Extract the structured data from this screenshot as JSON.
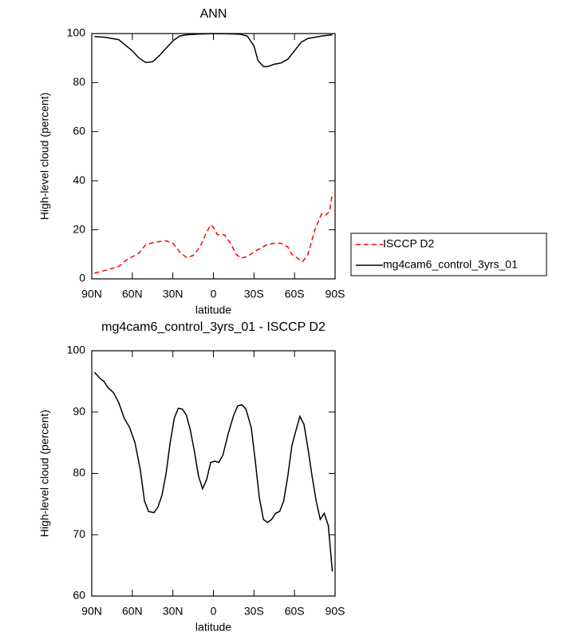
{
  "chart_data": [
    {
      "type": "line",
      "title": "ANN",
      "xlabel": "latitude",
      "ylabel": "High-level cloud (percent)",
      "xlim": [
        90,
        -90
      ],
      "ylim": [
        0,
        100
      ],
      "xticks": [
        {
          "value": 90,
          "label": "90N"
        },
        {
          "value": 60,
          "label": "60N"
        },
        {
          "value": 30,
          "label": "30N"
        },
        0,
        {
          "value": -30,
          "label": "30S"
        },
        {
          "value": -60,
          "label": "60S"
        },
        {
          "value": -90,
          "label": "90S"
        }
      ],
      "yticks": [
        0,
        20,
        40,
        60,
        80,
        100
      ],
      "legend": "right",
      "series": [
        {
          "name": "ISCCP D2",
          "color": "#ff0000",
          "line_style": "dashed",
          "x": [
            88,
            80,
            70,
            65,
            60,
            55,
            50,
            45,
            40,
            35,
            30,
            25,
            20,
            15,
            10,
            5,
            2,
            0,
            -3,
            -8,
            -12,
            -17,
            -20,
            -25,
            -30,
            -35,
            -40,
            -45,
            -50,
            -55,
            -58,
            -62,
            -66,
            -70,
            -75,
            -80,
            -83,
            -86,
            -88
          ],
          "values": [
            2.3,
            3.5,
            5,
            7.5,
            9,
            10.5,
            14,
            14.7,
            15.2,
            15.5,
            14.5,
            11,
            8.7,
            9.5,
            13,
            19,
            22,
            21,
            18,
            18,
            15,
            10,
            8.5,
            9,
            11,
            12.5,
            14,
            14.5,
            14.5,
            13,
            10,
            8.5,
            7,
            10,
            20,
            26.5,
            26,
            27.5,
            35
          ]
        },
        {
          "name": "mg4cam6_control_3yrs_01",
          "color": "#000000",
          "line_style": "solid",
          "x": [
            88,
            80,
            70,
            60,
            55,
            50,
            45,
            40,
            35,
            30,
            25,
            20,
            10,
            0,
            -10,
            -20,
            -25,
            -30,
            -33,
            -37,
            -40,
            -45,
            -50,
            -55,
            -60,
            -65,
            -70,
            -75,
            -80,
            -88
          ],
          "values": [
            98.8,
            98.5,
            97.5,
            93,
            90,
            88.2,
            88.5,
            91,
            94,
            97,
            99,
            99.5,
            99.8,
            100,
            99.9,
            99.7,
            99,
            95,
            89,
            86.5,
            86.5,
            87.5,
            88,
            89.5,
            93,
            96.5,
            98,
            98.5,
            99,
            99.5
          ]
        }
      ]
    },
    {
      "type": "line",
      "title": "mg4cam6_control_3yrs_01 - ISCCP D2",
      "xlabel": "latitude",
      "ylabel": "High-level cloud (percent)",
      "xlim": [
        90,
        -90
      ],
      "ylim": [
        60,
        100
      ],
      "xticks": [
        {
          "value": 90,
          "label": "90N"
        },
        {
          "value": 60,
          "label": "60N"
        },
        {
          "value": 30,
          "label": "30N"
        },
        0,
        {
          "value": -30,
          "label": "30S"
        },
        {
          "value": -60,
          "label": "60S"
        },
        {
          "value": -90,
          "label": "90S"
        }
      ],
      "yticks": [
        60,
        70,
        80,
        90,
        100
      ],
      "series": [
        {
          "color": "#000000",
          "line_style": "solid",
          "x": [
            88,
            84,
            81,
            78,
            74,
            70,
            66,
            62,
            58,
            54,
            51,
            48,
            44,
            41,
            38,
            35,
            32,
            29,
            26,
            23,
            20,
            17,
            14,
            11,
            8,
            5,
            2,
            -1,
            -4,
            -7,
            -11,
            -15,
            -18,
            -21,
            -24,
            -28,
            -31,
            -34,
            -37,
            -40,
            -43,
            -46,
            -49,
            -52,
            -55,
            -58,
            -61,
            -64,
            -67,
            -70,
            -73,
            -76,
            -79,
            -82,
            -85,
            -88
          ],
          "values": [
            96.5,
            95.5,
            95,
            94,
            93.2,
            91.5,
            89,
            87.5,
            85,
            80.5,
            75.5,
            73.8,
            73.6,
            74.5,
            76.5,
            80,
            85,
            89,
            90.6,
            90.5,
            89.5,
            87,
            83.5,
            79.5,
            77.5,
            79,
            81.8,
            82,
            81.8,
            83,
            86.5,
            89.5,
            91,
            91.2,
            90.5,
            87.5,
            82,
            76,
            72.5,
            72,
            72.5,
            73.5,
            73.8,
            75.5,
            79.5,
            84.5,
            87,
            89.3,
            88,
            84,
            79.5,
            75.5,
            72.5,
            73.5,
            71.5,
            64
          ]
        }
      ]
    }
  ]
}
